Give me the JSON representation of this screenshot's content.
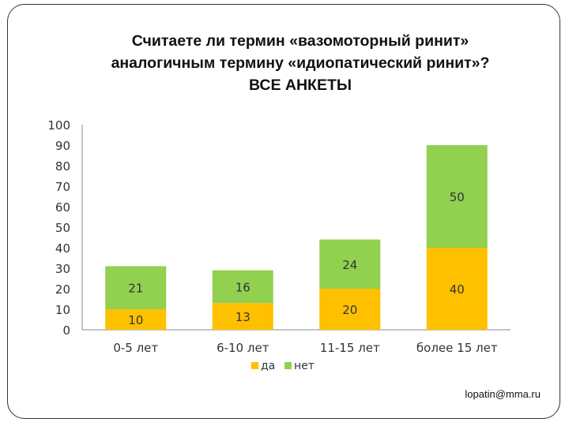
{
  "slide": {
    "title_lines": [
      "Считаете ли термин «вазомоторный ринит»",
      "аналогичным термину «идиопатический ринит»?",
      "ВСЕ АНКЕТЫ"
    ],
    "email": "lopatin@mma.ru"
  },
  "colors": {
    "da": "#FFC000",
    "net": "#92D050"
  },
  "chart_data": {
    "type": "bar",
    "stacked": true,
    "title": "Считаете ли термин «вазомоторный ринит» аналогичным термину «идиопатический ринит»? ВСЕ АНКЕТЫ",
    "categories": [
      "0-5 лет",
      "6-10 лет",
      "11-15 лет",
      "более 15 лет"
    ],
    "series": [
      {
        "name": "да",
        "values": [
          10,
          13,
          20,
          40
        ],
        "color": "#FFC000"
      },
      {
        "name": "нет",
        "values": [
          21,
          16,
          24,
          50
        ],
        "color": "#92D050"
      }
    ],
    "ylim": [
      0,
      100
    ],
    "yticks": [
      "0",
      "10",
      "20",
      "30",
      "40",
      "50",
      "60",
      "70",
      "80",
      "90",
      "100"
    ],
    "xlabel": "",
    "ylabel": "",
    "grid": false,
    "legend": "bottom"
  }
}
